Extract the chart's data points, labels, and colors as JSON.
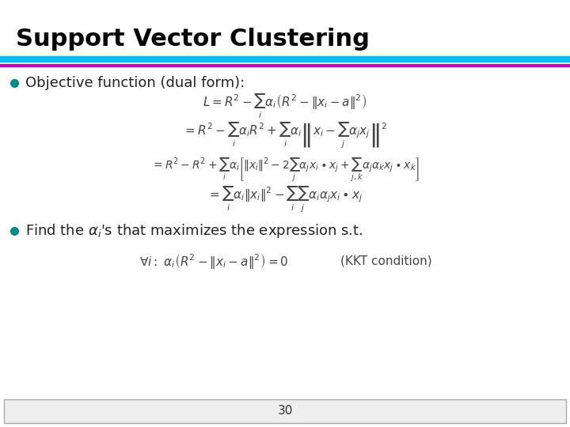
{
  "title": "Support Vector Clustering",
  "title_color": "#000000",
  "title_fontsize": 22,
  "title_bold": true,
  "line1_color": "#00BFFF",
  "line2_color": "#CC00CC",
  "bullet_color": "#008B8B",
  "bullet1_text": "Objective function (dual form):",
  "bullet2_text": "Find the α",
  "bullet2_rest": "ⁱ's that maximizes the expression s.t.",
  "eq1": "$L = R^2 - \\sum_i \\alpha_i \\left(R^2 - \\|x_i - a\\|^2\\right)$",
  "eq2": "$= R^2 - \\sum_i \\alpha_i R^2 + \\sum_i \\alpha_i \\left\\|x_i - \\sum_j \\alpha_j x_j\\right\\|^2$",
  "eq3": "$= R^2 - R^2 + \\sum_i \\alpha_i \\left[ \\|x_i\\|^2 - 2\\sum_j \\alpha_j x_i \\bullet x_j + \\sum_{j,k} \\alpha_j \\alpha_k x_j \\bullet x_k \\right]$",
  "eq4": "$= \\sum_i \\alpha_i \\|x_i\\|^2 - \\sum_i \\sum_j \\alpha_i \\alpha_j x_i \\bullet x_j$",
  "eq5": "$\\forall i: \\alpha_i \\left(R^2 - \\|x_i - a\\|^2\\right) = 0$",
  "kkt_text": "(KKT condition)",
  "page_num": "30",
  "bg_color": "#FFFFFF",
  "text_color": "#333333",
  "eq_color": "#555555",
  "footer_box_color": "#CCCCCC"
}
